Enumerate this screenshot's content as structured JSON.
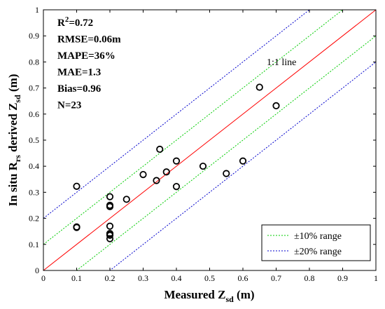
{
  "chart_data": {
    "type": "scatter",
    "title": "",
    "xlabel": {
      "main": "Measured Z",
      "sub": "sd",
      "unit": " (m)"
    },
    "ylabel": {
      "pre": "In situ R",
      "sub1": "rs",
      "mid": " derived Z",
      "sub2": "sd",
      "unit": " (m)"
    },
    "xlim": [
      0,
      1
    ],
    "ylim": [
      0,
      1
    ],
    "xticks": [
      "0",
      "0.1",
      "0.2",
      "0.3",
      "0.4",
      "0.5",
      "0.6",
      "0.7",
      "0.8",
      "0.9",
      "1"
    ],
    "yticks": [
      "0",
      "0.1",
      "0.2",
      "0.3",
      "0.4",
      "0.5",
      "0.6",
      "0.7",
      "0.8",
      "0.9",
      "1"
    ],
    "grid": false,
    "legend_position": "bottom-right",
    "points": {
      "x": [
        0.1,
        0.1,
        0.1,
        0.2,
        0.2,
        0.2,
        0.2,
        0.2,
        0.2,
        0.2,
        0.25,
        0.3,
        0.34,
        0.35,
        0.37,
        0.4,
        0.4,
        0.48,
        0.55,
        0.6,
        0.65,
        0.7,
        0.2
      ],
      "y": [
        0.323,
        0.167,
        0.165,
        0.283,
        0.25,
        0.245,
        0.17,
        0.142,
        0.135,
        0.122,
        0.273,
        0.368,
        0.345,
        0.465,
        0.378,
        0.42,
        0.322,
        0.4,
        0.372,
        0.42,
        0.703,
        0.632,
        0.14
      ],
      "marker": "circle",
      "color": "#000000"
    },
    "lines": [
      {
        "kind": "1:1",
        "offset": 0.0,
        "color": "#ff0000",
        "dash": "solid",
        "label": "1:1 line"
      },
      {
        "kind": "10pct",
        "offset": 0.1,
        "color": "#00cc00",
        "dash": "dotted",
        "legend": "±10% range"
      },
      {
        "kind": "10pct",
        "offset": -0.1,
        "color": "#00cc00",
        "dash": "dotted"
      },
      {
        "kind": "20pct",
        "offset": 0.2,
        "color": "#0000cc",
        "dash": "dotted",
        "legend": "±20% range"
      },
      {
        "kind": "20pct",
        "offset": -0.2,
        "color": "#0000cc",
        "dash": "dotted"
      }
    ],
    "stats": [
      {
        "pre": "R",
        "sup": "2",
        "post": "=0.72"
      },
      {
        "pre": "RMSE=0.06m",
        "sup": "",
        "post": ""
      },
      {
        "pre": "MAPE=36%",
        "sup": "",
        "post": ""
      },
      {
        "pre": "MAE=1.3",
        "sup": "",
        "post": ""
      },
      {
        "pre": "Bias=0.96",
        "sup": "",
        "post": ""
      },
      {
        "pre": "N=23",
        "sup": "",
        "post": ""
      }
    ],
    "line_label": "1:1 line",
    "legend": [
      {
        "label": "±10% range",
        "color": "#00cc00"
      },
      {
        "label": "±20% range",
        "color": "#0000cc"
      }
    ]
  }
}
